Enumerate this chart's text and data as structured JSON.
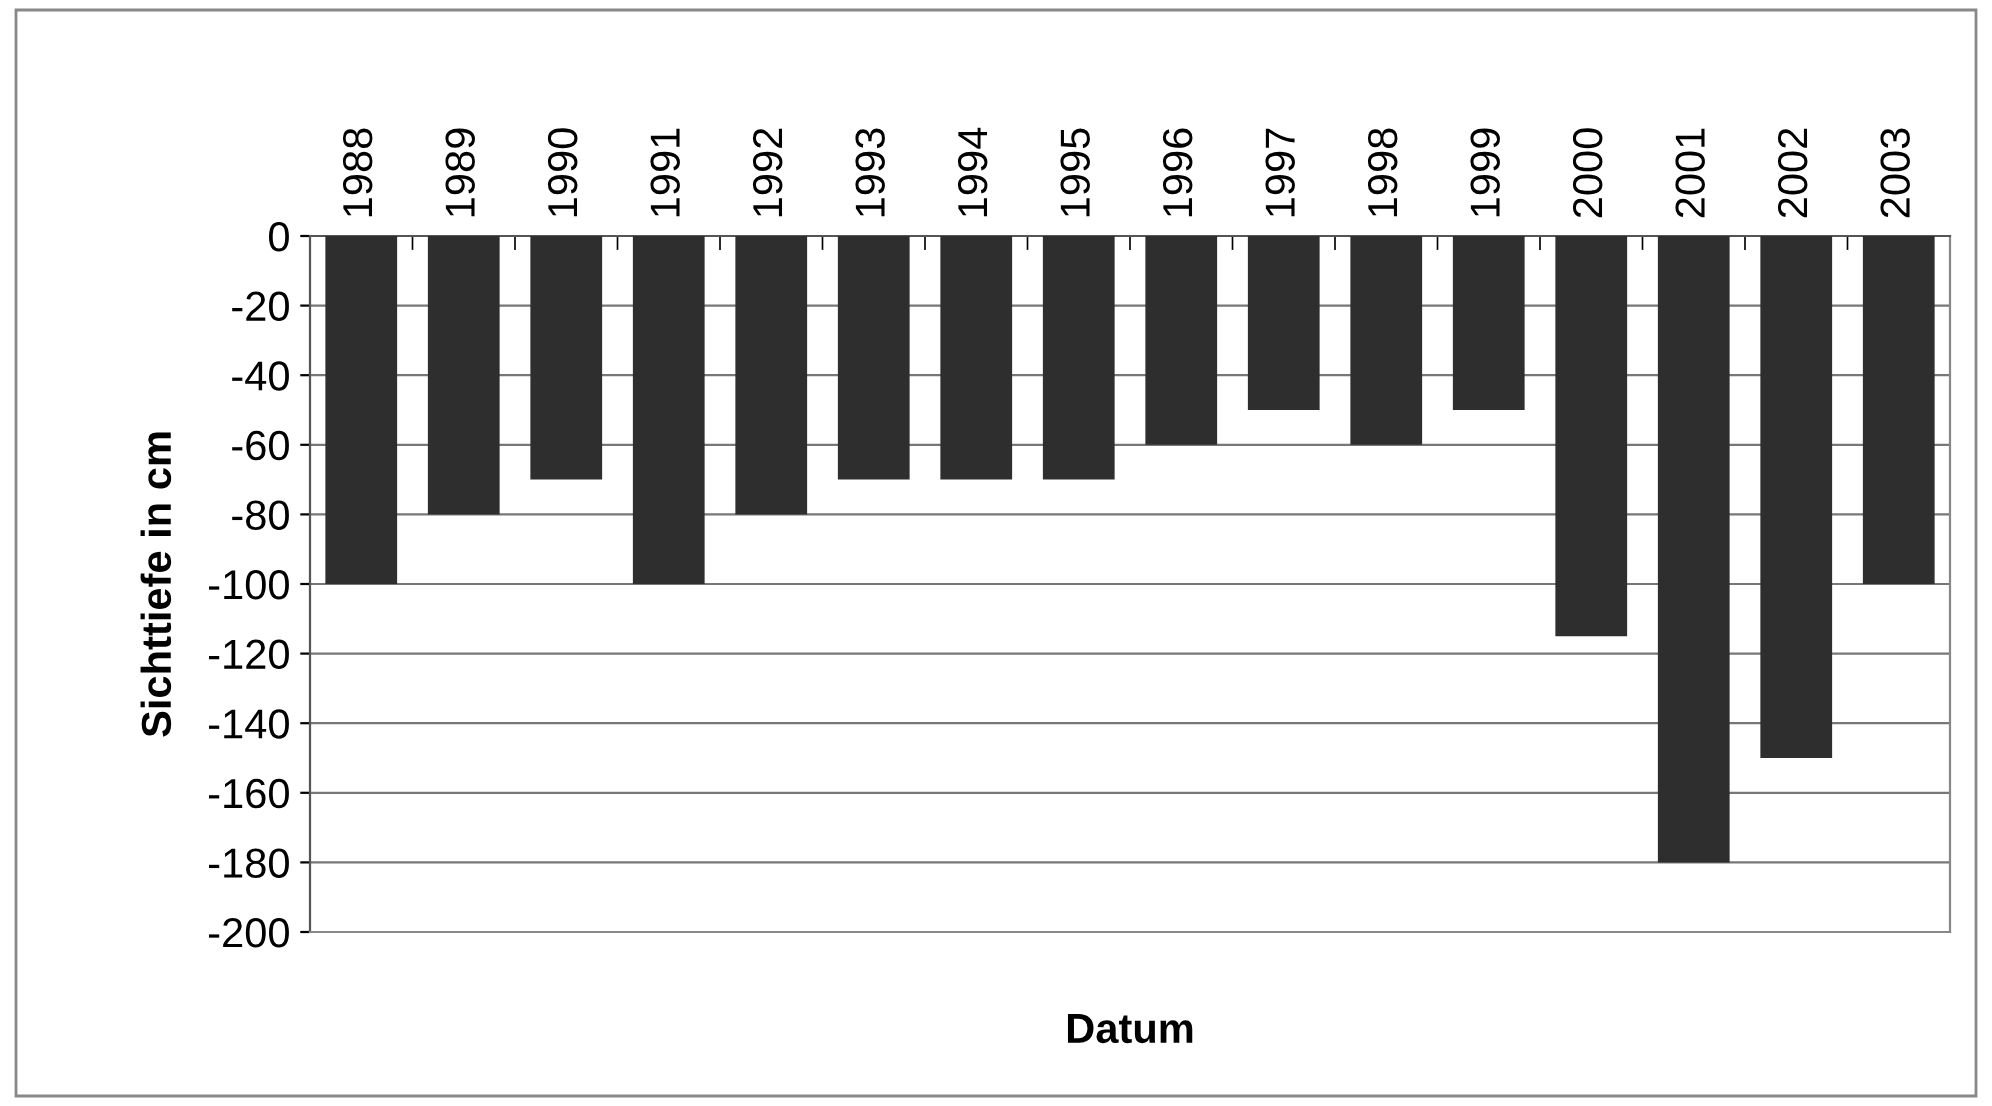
{
  "chart_data": {
    "type": "bar",
    "xlabel": "Datum",
    "ylabel": "Sichttiefe in cm",
    "categories": [
      "1988",
      "1989",
      "1990",
      "1991",
      "1992",
      "1993",
      "1994",
      "1995",
      "1996",
      "1997",
      "1998",
      "1999",
      "2000",
      "2001",
      "2002",
      "2003"
    ],
    "values": [
      -100,
      -80,
      -70,
      -100,
      -80,
      -70,
      -70,
      -70,
      -60,
      -50,
      -60,
      -50,
      -115,
      -180,
      -150,
      -100
    ],
    "color": "#2e2e2e",
    "ylim": [
      -200,
      0
    ],
    "yticks": [
      0,
      -20,
      -40,
      -60,
      -80,
      -100,
      -120,
      -140,
      -160,
      -180,
      -200
    ],
    "grid": "y",
    "legend": false
  }
}
